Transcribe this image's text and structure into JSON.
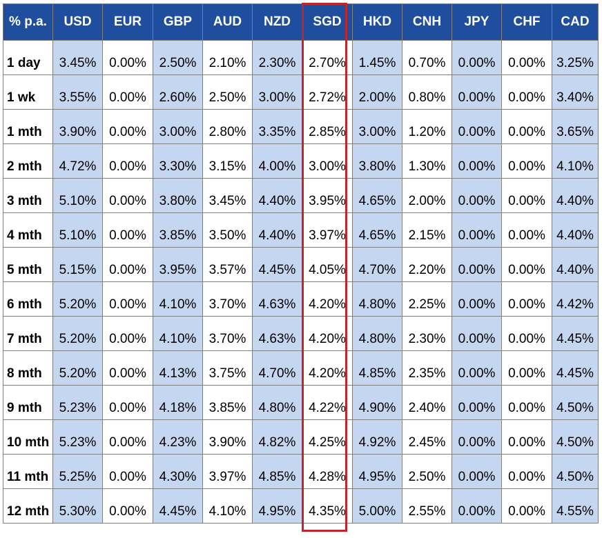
{
  "table": {
    "corner": "% p.a.",
    "currencies": [
      "USD",
      "EUR",
      "GBP",
      "AUD",
      "NZD",
      "SGD",
      "HKD",
      "CNH",
      "JPY",
      "CHF",
      "CAD"
    ],
    "highlighted_currency": "SGD",
    "colors": {
      "header_bg": "#1f4e9e",
      "shaded_cell": "#c5d6f0",
      "highlight_border": "#c0272d"
    },
    "rows": [
      {
        "tenor": "1 day",
        "rates": [
          "3.45%",
          "0.00%",
          "2.50%",
          "2.10%",
          "2.30%",
          "2.70%",
          "1.45%",
          "0.70%",
          "0.00%",
          "0.00%",
          "3.25%"
        ]
      },
      {
        "tenor": "1 wk",
        "rates": [
          "3.55%",
          "0.00%",
          "2.60%",
          "2.50%",
          "3.00%",
          "2.72%",
          "2.00%",
          "0.80%",
          "0.00%",
          "0.00%",
          "3.40%"
        ]
      },
      {
        "tenor": "1 mth",
        "rates": [
          "3.90%",
          "0.00%",
          "3.00%",
          "2.80%",
          "3.35%",
          "2.85%",
          "3.00%",
          "1.20%",
          "0.00%",
          "0.00%",
          "3.65%"
        ]
      },
      {
        "tenor": "2 mth",
        "rates": [
          "4.72%",
          "0.00%",
          "3.30%",
          "3.15%",
          "4.00%",
          "3.00%",
          "3.80%",
          "1.30%",
          "0.00%",
          "0.00%",
          "4.10%"
        ]
      },
      {
        "tenor": "3 mth",
        "rates": [
          "5.10%",
          "0.00%",
          "3.80%",
          "3.45%",
          "4.40%",
          "3.95%",
          "4.65%",
          "2.00%",
          "0.00%",
          "0.00%",
          "4.40%"
        ]
      },
      {
        "tenor": "4 mth",
        "rates": [
          "5.10%",
          "0.00%",
          "3.85%",
          "3.50%",
          "4.40%",
          "3.97%",
          "4.65%",
          "2.15%",
          "0.00%",
          "0.00%",
          "4.40%"
        ]
      },
      {
        "tenor": "5 mth",
        "rates": [
          "5.15%",
          "0.00%",
          "3.95%",
          "3.57%",
          "4.45%",
          "4.05%",
          "4.70%",
          "2.20%",
          "0.00%",
          "0.00%",
          "4.40%"
        ]
      },
      {
        "tenor": "6 mth",
        "rates": [
          "5.20%",
          "0.00%",
          "4.10%",
          "3.70%",
          "4.63%",
          "4.20%",
          "4.80%",
          "2.25%",
          "0.00%",
          "0.00%",
          "4.42%"
        ]
      },
      {
        "tenor": "7 mth",
        "rates": [
          "5.20%",
          "0.00%",
          "4.10%",
          "3.70%",
          "4.63%",
          "4.20%",
          "4.80%",
          "2.30%",
          "0.00%",
          "0.00%",
          "4.45%"
        ]
      },
      {
        "tenor": "8 mth",
        "rates": [
          "5.20%",
          "0.00%",
          "4.13%",
          "3.75%",
          "4.70%",
          "4.20%",
          "4.85%",
          "2.35%",
          "0.00%",
          "0.00%",
          "4.45%"
        ]
      },
      {
        "tenor": "9 mth",
        "rates": [
          "5.23%",
          "0.00%",
          "4.18%",
          "3.85%",
          "4.80%",
          "4.22%",
          "4.90%",
          "2.40%",
          "0.00%",
          "0.00%",
          "4.50%"
        ]
      },
      {
        "tenor": "10 mth",
        "rates": [
          "5.23%",
          "0.00%",
          "4.23%",
          "3.90%",
          "4.82%",
          "4.25%",
          "4.92%",
          "2.45%",
          "0.00%",
          "0.00%",
          "4.50%"
        ]
      },
      {
        "tenor": "11 mth",
        "rates": [
          "5.25%",
          "0.00%",
          "4.30%",
          "3.97%",
          "4.85%",
          "4.28%",
          "4.95%",
          "2.50%",
          "0.00%",
          "0.00%",
          "4.50%"
        ]
      },
      {
        "tenor": "12 mth",
        "rates": [
          "5.30%",
          "0.00%",
          "4.45%",
          "4.10%",
          "4.95%",
          "4.35%",
          "5.00%",
          "2.55%",
          "0.00%",
          "0.00%",
          "4.55%"
        ]
      }
    ]
  }
}
